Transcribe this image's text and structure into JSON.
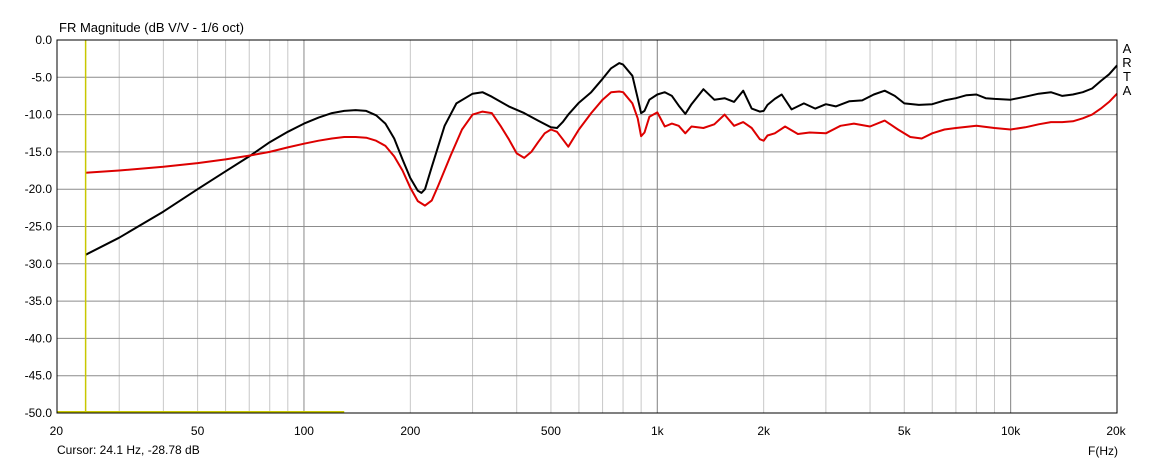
{
  "chart_data": {
    "type": "line",
    "title": "FR Magnitude (dB V/V - 1/6 oct)",
    "xlabel": "F(Hz)",
    "ylabel": "",
    "x_scale": "log",
    "xlim": [
      20,
      20000
    ],
    "ylim": [
      -50,
      0
    ],
    "grid": true,
    "x_ticks": [
      20,
      50,
      100,
      200,
      500,
      1000,
      2000,
      5000,
      10000,
      20000
    ],
    "x_tick_labels": [
      "20",
      "50",
      "100",
      "200",
      "500",
      "1k",
      "2k",
      "5k",
      "10k",
      "20k"
    ],
    "y_ticks": [
      0,
      -5,
      -10,
      -15,
      -20,
      -25,
      -30,
      -35,
      -40,
      -45,
      -50
    ],
    "y_tick_labels": [
      "0.0",
      "-5.0",
      "-10.0",
      "-15.0",
      "-20.0",
      "-25.0",
      "-30.0",
      "-35.0",
      "-40.0",
      "-45.0",
      "-50.0"
    ],
    "series": [
      {
        "color": "#000000",
        "x": [
          24.1,
          30,
          40,
          50,
          60,
          70,
          80,
          90,
          100,
          110,
          120,
          130,
          140,
          150,
          160,
          170,
          180,
          190,
          200,
          210,
          215,
          220,
          230,
          250,
          270,
          300,
          320,
          340,
          380,
          420,
          460,
          500,
          520,
          540,
          560,
          600,
          650,
          700,
          740,
          780,
          800,
          850,
          880,
          900,
          920,
          950,
          1000,
          1050,
          1100,
          1150,
          1200,
          1250,
          1350,
          1450,
          1550,
          1650,
          1750,
          1850,
          1950,
          2000,
          2050,
          2150,
          2250,
          2400,
          2600,
          2800,
          3000,
          3200,
          3500,
          3800,
          4100,
          4400,
          4700,
          5000,
          5500,
          6000,
          6500,
          7000,
          7500,
          8000,
          8500,
          9000,
          10000,
          11000,
          12000,
          13000,
          14000,
          15000,
          16000,
          17000,
          18000,
          19000,
          20000
        ],
        "values": [
          -28.8,
          -26.5,
          -23.0,
          -20.0,
          -17.6,
          -15.6,
          -13.7,
          -12.3,
          -11.2,
          -10.4,
          -9.8,
          -9.5,
          -9.4,
          -9.5,
          -10.1,
          -11.2,
          -13.2,
          -16.0,
          -18.5,
          -20.2,
          -20.5,
          -20.0,
          -17.0,
          -11.5,
          -8.5,
          -7.2,
          -7.0,
          -7.6,
          -8.9,
          -9.8,
          -10.8,
          -11.7,
          -11.8,
          -11.0,
          -10.0,
          -8.4,
          -7.0,
          -5.2,
          -3.8,
          -3.1,
          -3.3,
          -4.8,
          -7.8,
          -9.8,
          -9.5,
          -8.0,
          -7.3,
          -7.0,
          -7.5,
          -8.8,
          -9.9,
          -8.6,
          -6.6,
          -8.0,
          -7.8,
          -8.3,
          -6.8,
          -9.2,
          -9.6,
          -9.5,
          -8.7,
          -7.9,
          -7.3,
          -9.3,
          -8.5,
          -9.2,
          -8.6,
          -8.9,
          -8.2,
          -8.1,
          -7.3,
          -6.8,
          -7.5,
          -8.5,
          -8.7,
          -8.6,
          -8.1,
          -7.8,
          -7.4,
          -7.3,
          -7.8,
          -7.9,
          -8.0,
          -7.6,
          -7.2,
          -7.0,
          -7.5,
          -7.3,
          -7.0,
          -6.5,
          -5.5,
          -4.6,
          -3.4
        ]
      },
      {
        "color": "#dd0000",
        "x": [
          24.1,
          30,
          40,
          50,
          60,
          70,
          80,
          90,
          100,
          110,
          120,
          130,
          140,
          150,
          160,
          170,
          180,
          190,
          200,
          210,
          220,
          230,
          240,
          260,
          280,
          300,
          320,
          340,
          360,
          380,
          400,
          420,
          440,
          460,
          480,
          500,
          520,
          540,
          560,
          600,
          650,
          700,
          740,
          780,
          800,
          850,
          880,
          900,
          920,
          950,
          1000,
          1050,
          1100,
          1150,
          1200,
          1250,
          1350,
          1450,
          1550,
          1650,
          1750,
          1850,
          1950,
          2000,
          2050,
          2150,
          2300,
          2500,
          2700,
          3000,
          3300,
          3600,
          4000,
          4400,
          4800,
          5200,
          5600,
          6000,
          6500,
          7000,
          8000,
          9000,
          10000,
          11000,
          12000,
          13000,
          14000,
          15000,
          16000,
          17000,
          18000,
          19000,
          20000
        ],
        "values": [
          -17.8,
          -17.5,
          -17.0,
          -16.5,
          -16.0,
          -15.5,
          -15.0,
          -14.4,
          -13.9,
          -13.5,
          -13.2,
          -13.0,
          -13.0,
          -13.1,
          -13.5,
          -14.2,
          -15.6,
          -17.5,
          -19.8,
          -21.6,
          -22.2,
          -21.5,
          -19.5,
          -15.5,
          -12.0,
          -10.0,
          -9.6,
          -9.8,
          -11.5,
          -13.3,
          -15.2,
          -15.8,
          -15.0,
          -13.7,
          -12.5,
          -12.0,
          -12.3,
          -13.3,
          -14.3,
          -12.0,
          -9.8,
          -8.0,
          -7.0,
          -6.9,
          -7.0,
          -8.5,
          -10.5,
          -12.9,
          -12.4,
          -10.3,
          -9.7,
          -11.6,
          -11.2,
          -11.5,
          -12.5,
          -11.6,
          -11.8,
          -11.3,
          -10.0,
          -11.5,
          -11.0,
          -11.8,
          -13.3,
          -13.5,
          -12.8,
          -12.5,
          -11.6,
          -12.6,
          -12.4,
          -12.5,
          -11.5,
          -11.2,
          -11.6,
          -10.8,
          -12.0,
          -13.0,
          -13.2,
          -12.5,
          -12.0,
          -11.8,
          -11.5,
          -11.8,
          -12.0,
          -11.7,
          -11.3,
          -11.0,
          -11.0,
          -10.9,
          -10.5,
          -10.0,
          -9.2,
          -8.3,
          -7.2
        ]
      }
    ],
    "cursor": {
      "x": 24.1,
      "y": -28.78,
      "color": "#c8c800"
    }
  },
  "cursor_readout": "Cursor: 24.1 Hz, -28.78 dB",
  "brand_letters": [
    "A",
    "R",
    "T",
    "A"
  ]
}
